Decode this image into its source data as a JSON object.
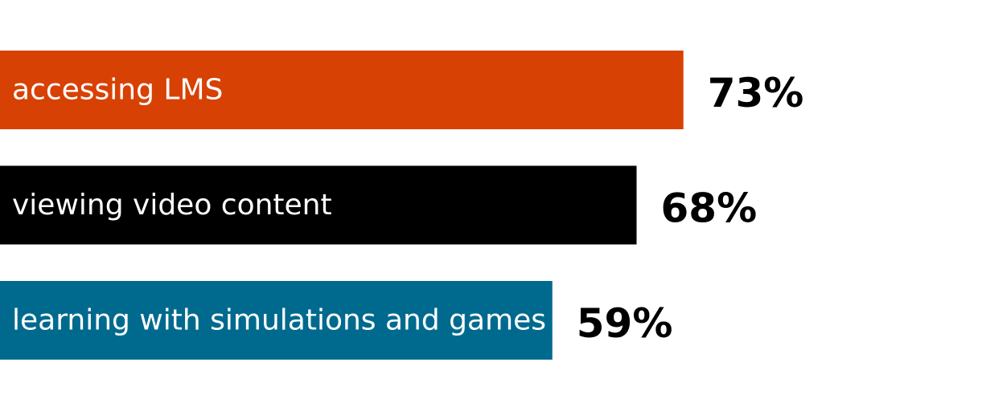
{
  "chart_data": {
    "type": "hbar",
    "categories": [
      "accessing LMS",
      "viewing video content",
      "learning with simulations and games"
    ],
    "values": [
      73,
      68,
      59
    ],
    "value_labels": [
      "73%",
      "68%",
      "59%"
    ],
    "colors": [
      "#d84104",
      "#000000",
      "#006a8e"
    ]
  }
}
